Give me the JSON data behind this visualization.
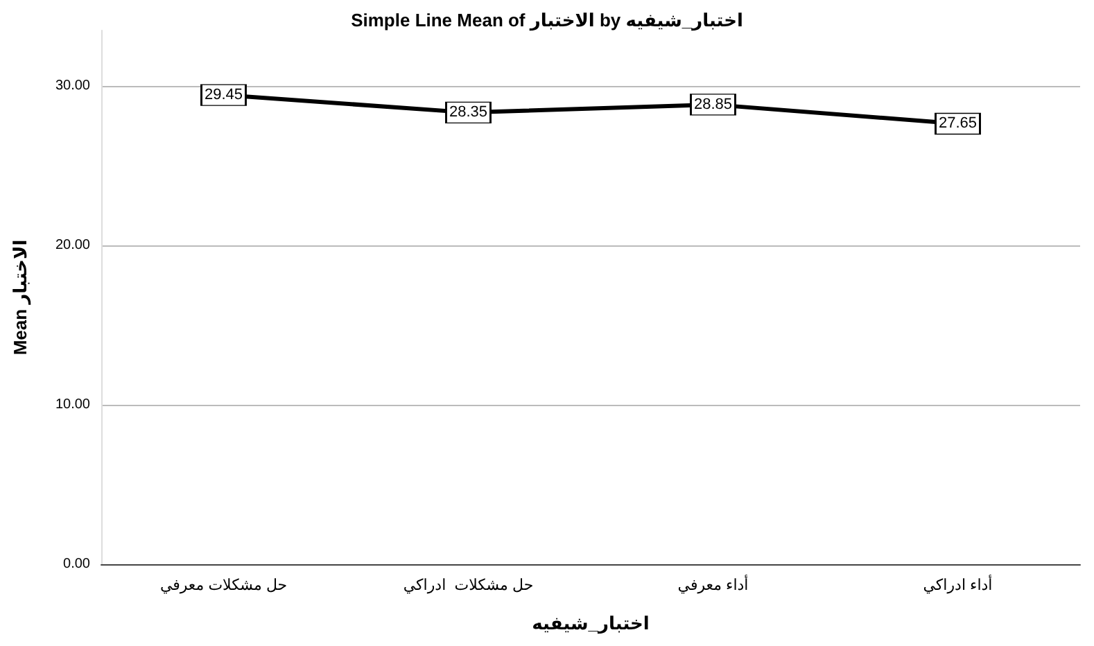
{
  "chart_data": {
    "type": "line",
    "title": "Simple Line Mean of الاختبار by اختبار_شيفيه",
    "xlabel": "اختبار_شيفيه",
    "ylabel": "Mean الاختبار",
    "categories": [
      "حل مشكلات معرفي",
      "حل مشكلات  ادراكي",
      "أداء معرفي",
      "أداء ادراكي"
    ],
    "series": [
      {
        "color": "#000000",
        "values": [
          29.45,
          28.35,
          28.85,
          27.65
        ]
      }
    ],
    "ylim": [
      0,
      33.5
    ],
    "yticks": [
      {
        "value": 0,
        "label": "0.00"
      },
      {
        "value": 10,
        "label": "10.00"
      },
      {
        "value": 20,
        "label": "20.00"
      },
      {
        "value": 30,
        "label": "30.00"
      }
    ],
    "grid": "y",
    "data_labels": true,
    "marker": "square",
    "line_style": "solid"
  }
}
